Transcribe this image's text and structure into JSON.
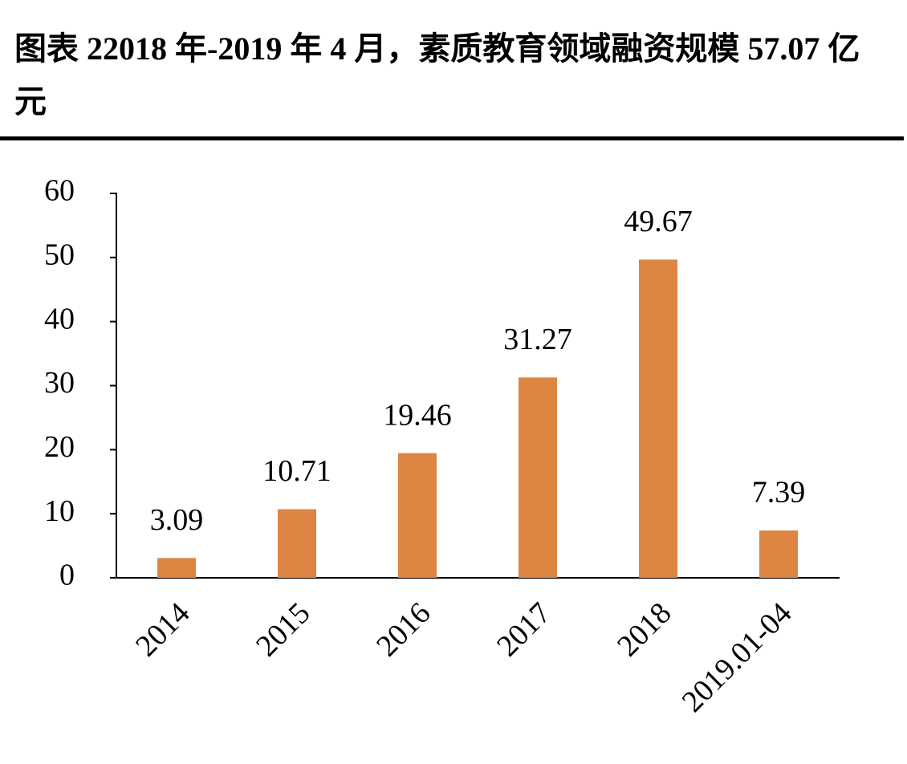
{
  "chart_data": {
    "type": "bar",
    "title": "图表 22018 年-2019 年 4 月，素质教育领域融资规模 57.07 亿元",
    "categories": [
      "2014",
      "2015",
      "2016",
      "2017",
      "2018",
      "2019.01-04"
    ],
    "values": [
      3.09,
      10.71,
      19.46,
      31.27,
      49.67,
      7.39
    ],
    "color": "#dd8543",
    "ylim": [
      0,
      60
    ],
    "yticks": [
      0,
      10,
      20,
      30,
      40,
      50,
      60
    ],
    "grid": false
  }
}
